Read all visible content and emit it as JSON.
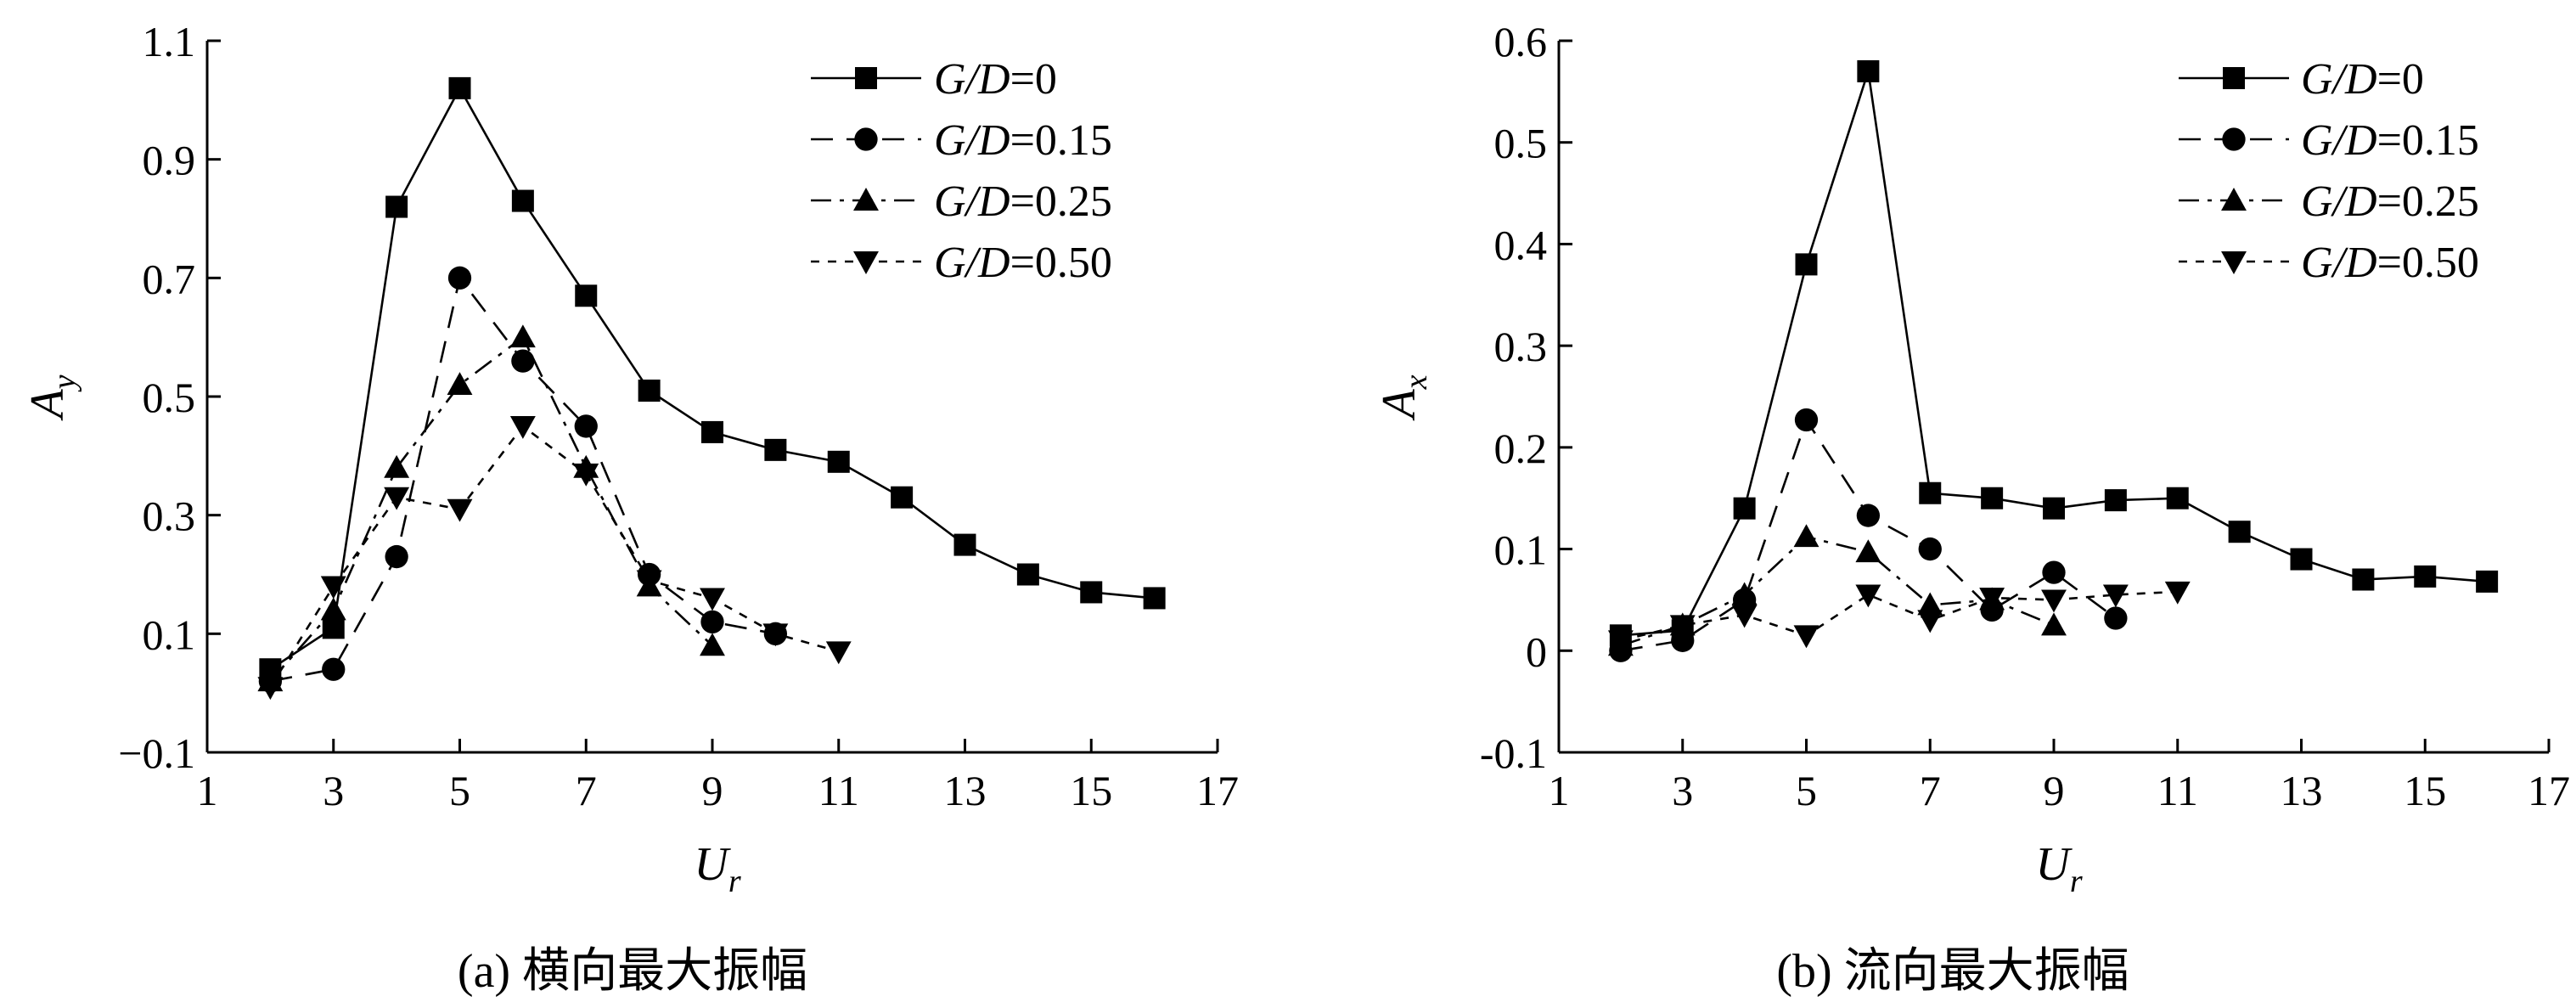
{
  "chart_data": [
    {
      "type": "line",
      "panel": "a",
      "caption": "(a) 横向最大振幅",
      "xlabel": "U",
      "xlabel_sub": "r",
      "ylabel": "A",
      "ylabel_sub": "y",
      "xlim": [
        1,
        17
      ],
      "ylim": [
        -0.1,
        1.1
      ],
      "xticks": [
        1,
        3,
        5,
        7,
        9,
        11,
        13,
        15,
        17
      ],
      "yticks": [
        -0.1,
        0.1,
        0.3,
        0.5,
        0.7,
        0.9,
        1.1
      ],
      "ytick_labels": [
        "−0.1",
        "0.1",
        "0.3",
        "0.5",
        "0.7",
        "0.9",
        "1.1"
      ],
      "grid": false,
      "legend_position": "top-right",
      "series": [
        {
          "name_italic": "G/D",
          "name_value": "=0",
          "marker": "square",
          "dash": "solid",
          "x": [
            2,
            3,
            4,
            5,
            6,
            7,
            8,
            9,
            10,
            11,
            12,
            13,
            14,
            15,
            16
          ],
          "y": [
            0.04,
            0.11,
            0.82,
            1.02,
            0.83,
            0.67,
            0.51,
            0.44,
            0.41,
            0.39,
            0.33,
            0.25,
            0.2,
            0.17,
            0.16
          ]
        },
        {
          "name_italic": "G/D",
          "name_value": "=0.15",
          "marker": "circle",
          "dash": "dashed",
          "x": [
            2,
            3,
            4,
            5,
            6,
            7,
            8,
            9,
            10
          ],
          "y": [
            0.02,
            0.04,
            0.23,
            0.7,
            0.56,
            0.45,
            0.2,
            0.12,
            0.1
          ]
        },
        {
          "name_italic": "G/D",
          "name_value": "=0.25",
          "marker": "triangle-up",
          "dash": "dashdot",
          "x": [
            2,
            3,
            4,
            5,
            6,
            7,
            8,
            9
          ],
          "y": [
            0.02,
            0.14,
            0.38,
            0.52,
            0.6,
            0.38,
            0.18,
            0.08
          ]
        },
        {
          "name_italic": "G/D",
          "name_value": "=0.50",
          "marker": "triangle-down",
          "dash": "dotdash",
          "x": [
            2,
            3,
            4,
            5,
            6,
            7,
            8,
            9,
            10,
            11
          ],
          "y": [
            0.01,
            0.18,
            0.33,
            0.31,
            0.45,
            0.37,
            0.19,
            0.16,
            0.1,
            0.07
          ]
        }
      ]
    },
    {
      "type": "line",
      "panel": "b",
      "caption": "(b) 流向最大振幅",
      "xlabel": "U",
      "xlabel_sub": "r",
      "ylabel": "A",
      "ylabel_sub": "x",
      "xlim": [
        1,
        17
      ],
      "ylim": [
        -0.1,
        0.6
      ],
      "xticks": [
        1,
        3,
        5,
        7,
        9,
        11,
        13,
        15,
        17
      ],
      "yticks": [
        -0.1,
        0,
        0.1,
        0.2,
        0.3,
        0.4,
        0.5,
        0.6
      ],
      "ytick_labels": [
        "-0.1",
        "0",
        "0.1",
        "0.2",
        "0.3",
        "0.4",
        "0.5",
        "0.6"
      ],
      "grid": false,
      "legend_position": "top-right",
      "series": [
        {
          "name_italic": "G/D",
          "name_value": "=0",
          "marker": "square",
          "dash": "solid",
          "x": [
            2,
            3,
            4,
            5,
            6,
            7,
            8,
            9,
            10,
            11,
            12,
            13,
            14,
            15,
            16
          ],
          "y": [
            0.015,
            0.02,
            0.14,
            0.38,
            0.57,
            0.155,
            0.15,
            0.14,
            0.148,
            0.15,
            0.117,
            0.09,
            0.07,
            0.073,
            0.068
          ]
        },
        {
          "name_italic": "G/D",
          "name_value": "=0.15",
          "marker": "circle",
          "dash": "dashed",
          "x": [
            2,
            3,
            4,
            5,
            6,
            7,
            8,
            9,
            10
          ],
          "y": [
            0.0,
            0.01,
            0.05,
            0.227,
            0.133,
            0.1,
            0.04,
            0.077,
            0.032
          ]
        },
        {
          "name_italic": "G/D",
          "name_value": "=0.25",
          "marker": "triangle-up",
          "dash": "dashdot",
          "x": [
            2,
            3,
            4,
            5,
            6,
            7,
            8,
            9
          ],
          "y": [
            0.005,
            0.025,
            0.055,
            0.112,
            0.097,
            0.045,
            0.05,
            0.025
          ]
        },
        {
          "name_italic": "G/D",
          "name_value": "=0.50",
          "marker": "triangle-down",
          "dash": "dotdash",
          "x": [
            2,
            3,
            4,
            5,
            6,
            7,
            8,
            9,
            10,
            11
          ],
          "y": [
            0.01,
            0.025,
            0.035,
            0.015,
            0.055,
            0.03,
            0.052,
            0.05,
            0.055,
            0.058
          ]
        }
      ]
    }
  ]
}
